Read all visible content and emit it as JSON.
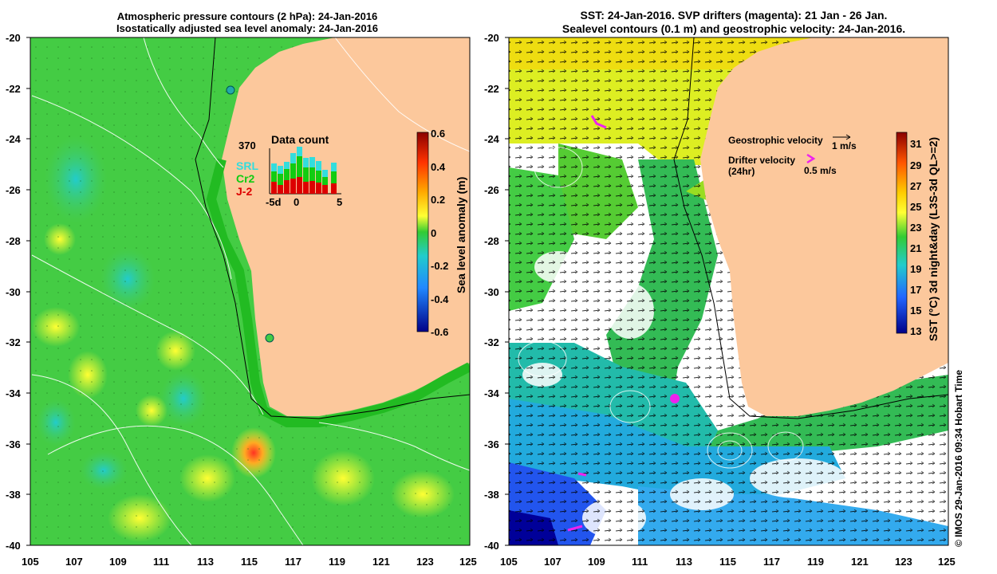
{
  "left_panel": {
    "title_line1": "Atmospheric pressure contours (2 hPa): 24-Jan-2016",
    "title_line2": "Isostatically adjusted sea level anomaly: 24-Jan-2016",
    "colorbar_label": "Sea level anomaly (m)",
    "colorbar_ticks": [
      "0.6",
      "0.4",
      "0.2",
      "0",
      "-0.2",
      "-0.4",
      "-0.6"
    ],
    "inset": {
      "title": "Data count",
      "max_label": "370",
      "legend": [
        "SRL",
        "Cr2",
        "J-2"
      ],
      "legend_colors": [
        "#33dddd",
        "#11cc11",
        "#dd0000"
      ],
      "x_ticks": [
        "-5d",
        "0",
        "5"
      ]
    }
  },
  "right_panel": {
    "title_line1": "SST: 24-Jan-2016. SVP drifters (magenta): 21 Jan - 26 Jan.",
    "title_line2": "Sealevel contours (0.1 m) and geostrophic velocity: 24-Jan-2016.",
    "colorbar_label": "SST (°C) 3d night&day (L3S-3d QL>=2)",
    "colorbar_ticks": [
      "31",
      "29",
      "27",
      "25",
      "23",
      "21",
      "19",
      "17",
      "15",
      "13"
    ],
    "legend": {
      "geo_label": "Geostrophic velocity",
      "geo_scale": "1 m/s",
      "drifter_label": "Drifter velocity",
      "drifter_sub": "(24hr)",
      "drifter_scale": "0.5 m/s"
    }
  },
  "y_ticks": [
    "-20",
    "-22",
    "-24",
    "-26",
    "-28",
    "-30",
    "-32",
    "-34",
    "-36",
    "-38",
    "-40"
  ],
  "x_ticks": [
    "105",
    "107",
    "109",
    "111",
    "113",
    "115",
    "117",
    "119",
    "121",
    "123",
    "125"
  ],
  "credit": "© IMOS 29-Jan-2016 09:34 Hobart Time",
  "colors": {
    "land": "#fcc89c",
    "ocean_green": "#33cc33",
    "magenta": "#ee22ee"
  }
}
